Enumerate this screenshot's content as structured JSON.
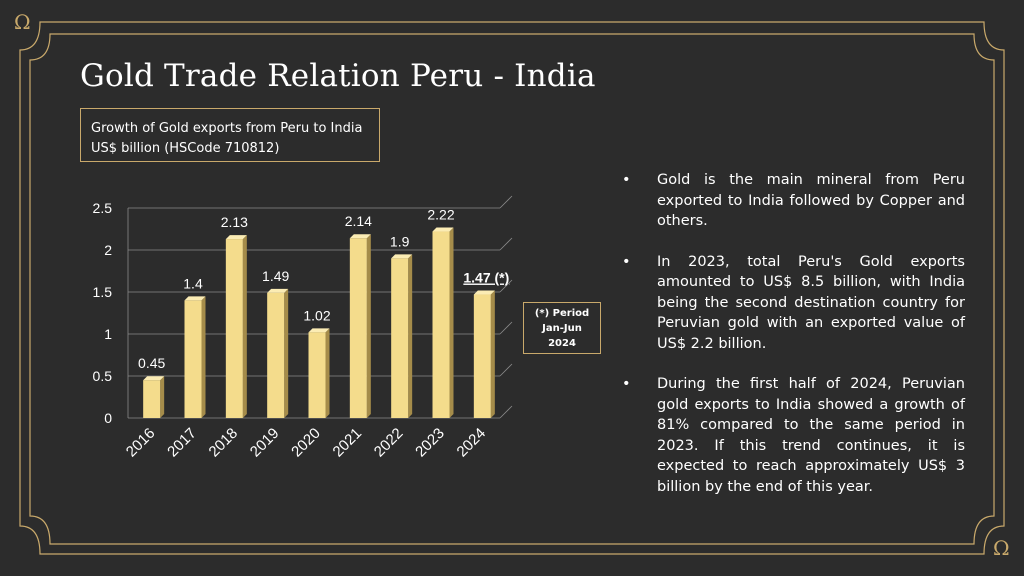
{
  "slide": {
    "title": "Gold Trade Relation Peru - India",
    "subtitle_line1": "Growth of Gold exports from Peru to India",
    "subtitle_line2": "US$ billion (HSCode 710812)",
    "note_line1": "(*) Period",
    "note_line2": "Jan-Jun",
    "note_line3": "2024",
    "decoration": "Ω",
    "bullet_symbol": "•",
    "bullets": [
      "Gold is the main mineral from Peru exported to India followed by Copper and others.",
      "In 2023, total Peru's Gold exports amounted to US$ 8.5 billion, with India being the second destination country for Peruvian gold with an exported value of US$ 2.2 billion.",
      "During the first half of 2024, Peruvian gold exports to India showed a growth of 81% compared to the same period in 2023. If this trend continues, it is expected to reach approximately US$ 3 billion by the end of this year."
    ]
  },
  "colors": {
    "background": "#2c2c2c",
    "frame_gold": "#c9a96b",
    "bar_front": "#f4dc8c",
    "bar_top": "#fbecb4",
    "bar_side": "#a58c4a",
    "text": "#ffffff"
  },
  "chart_data": {
    "type": "bar",
    "categories": [
      "2016",
      "2017",
      "2018",
      "2019",
      "2020",
      "2021",
      "2022",
      "2023",
      "2024"
    ],
    "values": [
      0.45,
      1.4,
      2.13,
      1.49,
      1.02,
      2.14,
      1.9,
      2.22,
      1.47
    ],
    "data_labels": [
      "0.45",
      "1.4",
      "2.13",
      "1.49",
      "1.02",
      "2.14",
      "1.9",
      "2.22",
      "1.47 (*)"
    ],
    "y_ticks": [
      0,
      0.5,
      1,
      1.5,
      2,
      2.5
    ],
    "y_tick_labels": [
      "0",
      "0.5",
      "1",
      "1.5",
      "2",
      "2.5"
    ],
    "ylim": [
      0,
      2.5
    ],
    "grid": true,
    "style": "3d-bar"
  }
}
